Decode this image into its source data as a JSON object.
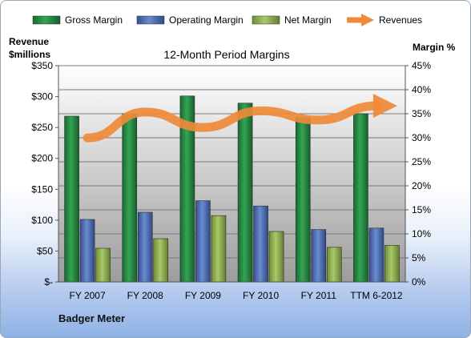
{
  "chart_data": {
    "type": "bar",
    "title": "12-Month Period Margins",
    "categories": [
      "FY 2007",
      "FY 2008",
      "FY 2009",
      "FY 2010",
      "FY 2011",
      "TTM 6-2012"
    ],
    "series": [
      {
        "name": "Gross Margin",
        "axis": "right",
        "color": "#1f7a3a",
        "values": [
          34.5,
          35.0,
          38.7,
          37.2,
          34.2,
          35.0
        ]
      },
      {
        "name": "Operating Margin",
        "axis": "right",
        "color": "#3f62a6",
        "values": [
          13.0,
          14.5,
          16.9,
          15.8,
          10.9,
          11.2
        ]
      },
      {
        "name": "Net Margin",
        "axis": "right",
        "color": "#8bab4a",
        "values": [
          7.0,
          9.0,
          13.8,
          10.5,
          7.2,
          7.6
        ]
      },
      {
        "name": "Revenues",
        "axis": "left",
        "type": "line-arrow",
        "color": "#ee8a3a",
        "values": [
          233,
          275,
          250,
          277,
          262,
          285
        ]
      }
    ],
    "yleft": {
      "label": [
        "Revenue",
        "$millions"
      ],
      "ticks": [
        "$-",
        "$50",
        "$100",
        "$150",
        "$200",
        "$250",
        "$300",
        "$350"
      ],
      "ylim": [
        0,
        350
      ]
    },
    "yright": {
      "label": "Margin %",
      "ticks": [
        "0%",
        "5%",
        "10%",
        "15%",
        "20%",
        "25%",
        "30%",
        "35%",
        "40%",
        "45%"
      ],
      "ylim": [
        0,
        45
      ]
    },
    "legend": "top",
    "grid": true
  },
  "footer": {
    "company": "Badger Meter"
  }
}
